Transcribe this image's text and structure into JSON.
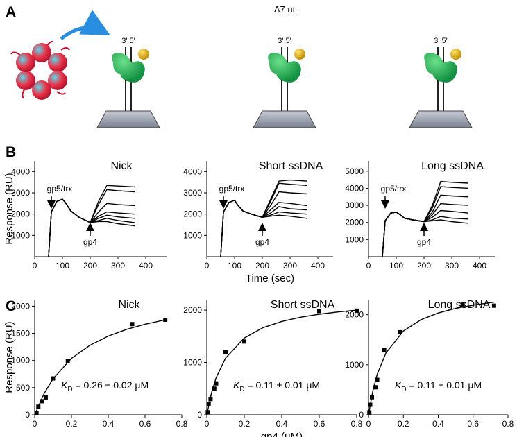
{
  "panel_labels": [
    "A",
    "B",
    "C"
  ],
  "panel_a": {
    "annotation": "Δ7 nt",
    "strand_labels": [
      "3' 5'",
      "3' 5'",
      "3' 5'"
    ]
  },
  "chart_data": [
    {
      "type": "line",
      "title": "Nick",
      "ylabel": "Response (RU)",
      "x": [
        50,
        60,
        80,
        100,
        110,
        130,
        160,
        200,
        230,
        260,
        300,
        360
      ],
      "series": [
        {
          "color": "#000000",
          "values": [
            0,
            2100,
            2600,
            2700,
            2550,
            2150,
            1850,
            1600,
            2600,
            3350,
            3320,
            3280
          ]
        },
        {
          "color": "#000000",
          "values": [
            0,
            2100,
            2600,
            2700,
            2550,
            2150,
            1850,
            1600,
            2450,
            3150,
            3100,
            3050
          ]
        },
        {
          "color": "#000000",
          "values": [
            0,
            2100,
            2600,
            2700,
            2550,
            2150,
            1850,
            1600,
            2100,
            2500,
            2450,
            2400
          ]
        },
        {
          "color": "#000000",
          "values": [
            0,
            2100,
            2600,
            2700,
            2550,
            2150,
            1850,
            1600,
            1900,
            2100,
            2050,
            2000
          ]
        },
        {
          "color": "#000000",
          "values": [
            0,
            2100,
            2600,
            2700,
            2550,
            2150,
            1850,
            1600,
            1800,
            1950,
            1870,
            1800
          ]
        },
        {
          "color": "#000000",
          "values": [
            0,
            2100,
            2600,
            2700,
            2550,
            2150,
            1850,
            1600,
            1700,
            1800,
            1700,
            1600
          ]
        },
        {
          "color": "#000000",
          "values": [
            0,
            2100,
            2600,
            2700,
            2550,
            2150,
            1850,
            1600,
            1650,
            1650,
            1550,
            1450
          ]
        }
      ],
      "xlim": [
        0,
        475
      ],
      "ylim": [
        0,
        4500
      ],
      "xticks": [
        0,
        100,
        200,
        300,
        400
      ],
      "yticks": [
        1000,
        2000,
        3000,
        4000
      ],
      "annotations": [
        "gp5/trx",
        "gp4"
      ]
    },
    {
      "type": "line",
      "title": "Short ssDNA",
      "xlabel": "Time (sec)",
      "x": [
        50,
        60,
        80,
        100,
        110,
        130,
        160,
        200,
        230,
        260,
        300,
        360
      ],
      "series": [
        {
          "color": "#000000",
          "values": [
            0,
            2100,
            2550,
            2650,
            2450,
            2150,
            2000,
            1850,
            2700,
            3550,
            3600,
            3550
          ]
        },
        {
          "color": "#000000",
          "values": [
            0,
            2100,
            2550,
            2650,
            2450,
            2150,
            2000,
            1850,
            2600,
            3450,
            3400,
            3350
          ]
        },
        {
          "color": "#000000",
          "values": [
            0,
            2100,
            2550,
            2650,
            2450,
            2150,
            2000,
            1850,
            2400,
            3050,
            3000,
            2950
          ]
        },
        {
          "color": "#000000",
          "values": [
            0,
            2100,
            2550,
            2650,
            2450,
            2150,
            2000,
            1850,
            2200,
            2550,
            2500,
            2400
          ]
        },
        {
          "color": "#000000",
          "values": [
            0,
            2100,
            2550,
            2650,
            2450,
            2150,
            2000,
            1850,
            2050,
            2350,
            2250,
            2200
          ]
        },
        {
          "color": "#000000",
          "values": [
            0,
            2100,
            2550,
            2650,
            2450,
            2150,
            2000,
            1850,
            1950,
            2100,
            2050,
            2000
          ]
        },
        {
          "color": "#000000",
          "values": [
            0,
            2100,
            2550,
            2650,
            2450,
            2150,
            2000,
            1850,
            1900,
            1950,
            1900,
            1800
          ]
        }
      ],
      "xlim": [
        0,
        455
      ],
      "ylim": [
        0,
        4500
      ],
      "xticks": [
        0,
        100,
        200,
        300,
        400
      ],
      "yticks": [
        1000,
        2000,
        3000,
        4000
      ],
      "annotations": [
        "gp5/trx",
        "gp4"
      ]
    },
    {
      "type": "line",
      "title": "Long ssDNA",
      "x": [
        50,
        60,
        80,
        100,
        110,
        130,
        160,
        200,
        230,
        260,
        300,
        360
      ],
      "series": [
        {
          "color": "#000000",
          "values": [
            0,
            2100,
            2550,
            2600,
            2500,
            2250,
            2150,
            2050,
            3000,
            4400,
            4350,
            4300
          ]
        },
        {
          "color": "#000000",
          "values": [
            0,
            2100,
            2550,
            2600,
            2500,
            2250,
            2150,
            2050,
            2850,
            4100,
            4050,
            4000
          ]
        },
        {
          "color": "#000000",
          "values": [
            0,
            2100,
            2550,
            2600,
            2500,
            2250,
            2150,
            2050,
            2600,
            3600,
            3550,
            3500
          ]
        },
        {
          "color": "#000000",
          "values": [
            0,
            2100,
            2550,
            2600,
            2500,
            2250,
            2150,
            2050,
            2450,
            3100,
            3050,
            3000
          ]
        },
        {
          "color": "#000000",
          "values": [
            0,
            2100,
            2550,
            2600,
            2500,
            2250,
            2150,
            2050,
            2300,
            2700,
            2650,
            2550
          ]
        },
        {
          "color": "#000000",
          "values": [
            0,
            2100,
            2550,
            2600,
            2500,
            2250,
            2150,
            2050,
            2150,
            2350,
            2250,
            2200
          ]
        },
        {
          "color": "#000000",
          "values": [
            0,
            2100,
            2550,
            2600,
            2500,
            2250,
            2150,
            2050,
            2100,
            2150,
            2050,
            1950
          ]
        }
      ],
      "xlim": [
        0,
        455
      ],
      "ylim": [
        0,
        5600
      ],
      "xticks": [
        0,
        100,
        200,
        300,
        400
      ],
      "yticks": [
        1000,
        2000,
        3000,
        4000,
        5000
      ],
      "annotations": [
        "gp5/trx",
        "gp4"
      ]
    },
    {
      "type": "scatter",
      "title": "Nick",
      "ylabel": "Response (RU)",
      "series": [
        {
          "color": "#000000",
          "x": [
            0.01,
            0.02,
            0.04,
            0.06,
            0.1,
            0.18,
            0.53,
            0.71
          ],
          "values": [
            30,
            150,
            250,
            320,
            670,
            990,
            1670,
            1750
          ]
        }
      ],
      "fit_curve": {
        "color": "#000000",
        "x": [
          0,
          0.05,
          0.1,
          0.2,
          0.3,
          0.4,
          0.5,
          0.6,
          0.72
        ],
        "values": [
          0,
          386,
          664,
          1039,
          1280,
          1449,
          1573,
          1668,
          1756
        ]
      },
      "kd": {
        "symbol": "K",
        "subscript": "D",
        "text": " = 0.26 ± 0.02 μM"
      },
      "xlim": [
        0,
        0.8
      ],
      "ylim": [
        0,
        2120
      ],
      "xticks": [
        0,
        0.2,
        0.4,
        0.6,
        0.8
      ],
      "yticks": [
        0,
        500,
        1000,
        1500,
        2000
      ]
    },
    {
      "type": "scatter",
      "title": "Short ssDNA",
      "xlabel": "gp4 (μM)",
      "series": [
        {
          "color": "#000000",
          "x": [
            0.005,
            0.01,
            0.02,
            0.04,
            0.05,
            0.1,
            0.2,
            0.6,
            0.8
          ],
          "values": [
            50,
            200,
            300,
            500,
            600,
            1200,
            1400,
            1980,
            1990
          ]
        }
      ],
      "fit_curve": {
        "color": "#000000",
        "x": [
          0,
          0.025,
          0.05,
          0.1,
          0.2,
          0.3,
          0.4,
          0.5,
          0.6,
          0.7,
          0.8
        ],
        "values": [
          0,
          421,
          711,
          1083,
          1468,
          1665,
          1784,
          1865,
          1922,
          1966,
          2000
        ]
      },
      "kd": {
        "symbol": "K",
        "subscript": "D",
        "text": " = 0.11 ± 0.01 μM"
      },
      "xlim": [
        0,
        0.8
      ],
      "ylim": [
        0,
        2200
      ],
      "xticks": [
        0,
        0.2,
        0.4,
        0.6,
        0.8
      ],
      "yticks": [
        0,
        1000,
        2000
      ]
    },
    {
      "type": "scatter",
      "title": "Long ssDNA",
      "series": [
        {
          "color": "#000000",
          "x": [
            0.005,
            0.01,
            0.02,
            0.04,
            0.05,
            0.09,
            0.18,
            0.54,
            0.72
          ],
          "values": [
            50,
            200,
            350,
            550,
            700,
            1300,
            1650,
            2200,
            2180
          ]
        }
      ],
      "fit_curve": {
        "color": "#000000",
        "x": [
          0,
          0.025,
          0.05,
          0.1,
          0.2,
          0.3,
          0.4,
          0.5,
          0.6,
          0.72
        ],
        "values": [
          0,
          480,
          811,
          1235,
          1674,
          1898,
          2034,
          2125,
          2191,
          2250
        ]
      },
      "kd": {
        "symbol": "K",
        "subscript": "D",
        "text": " = 0.11 ± 0.01 μM"
      },
      "xlim": [
        0,
        0.8
      ],
      "ylim": [
        0,
        2300
      ],
      "xticks": [
        0,
        0.2,
        0.4,
        0.6,
        0.8
      ],
      "yticks": [
        0,
        1000,
        2000
      ]
    }
  ]
}
